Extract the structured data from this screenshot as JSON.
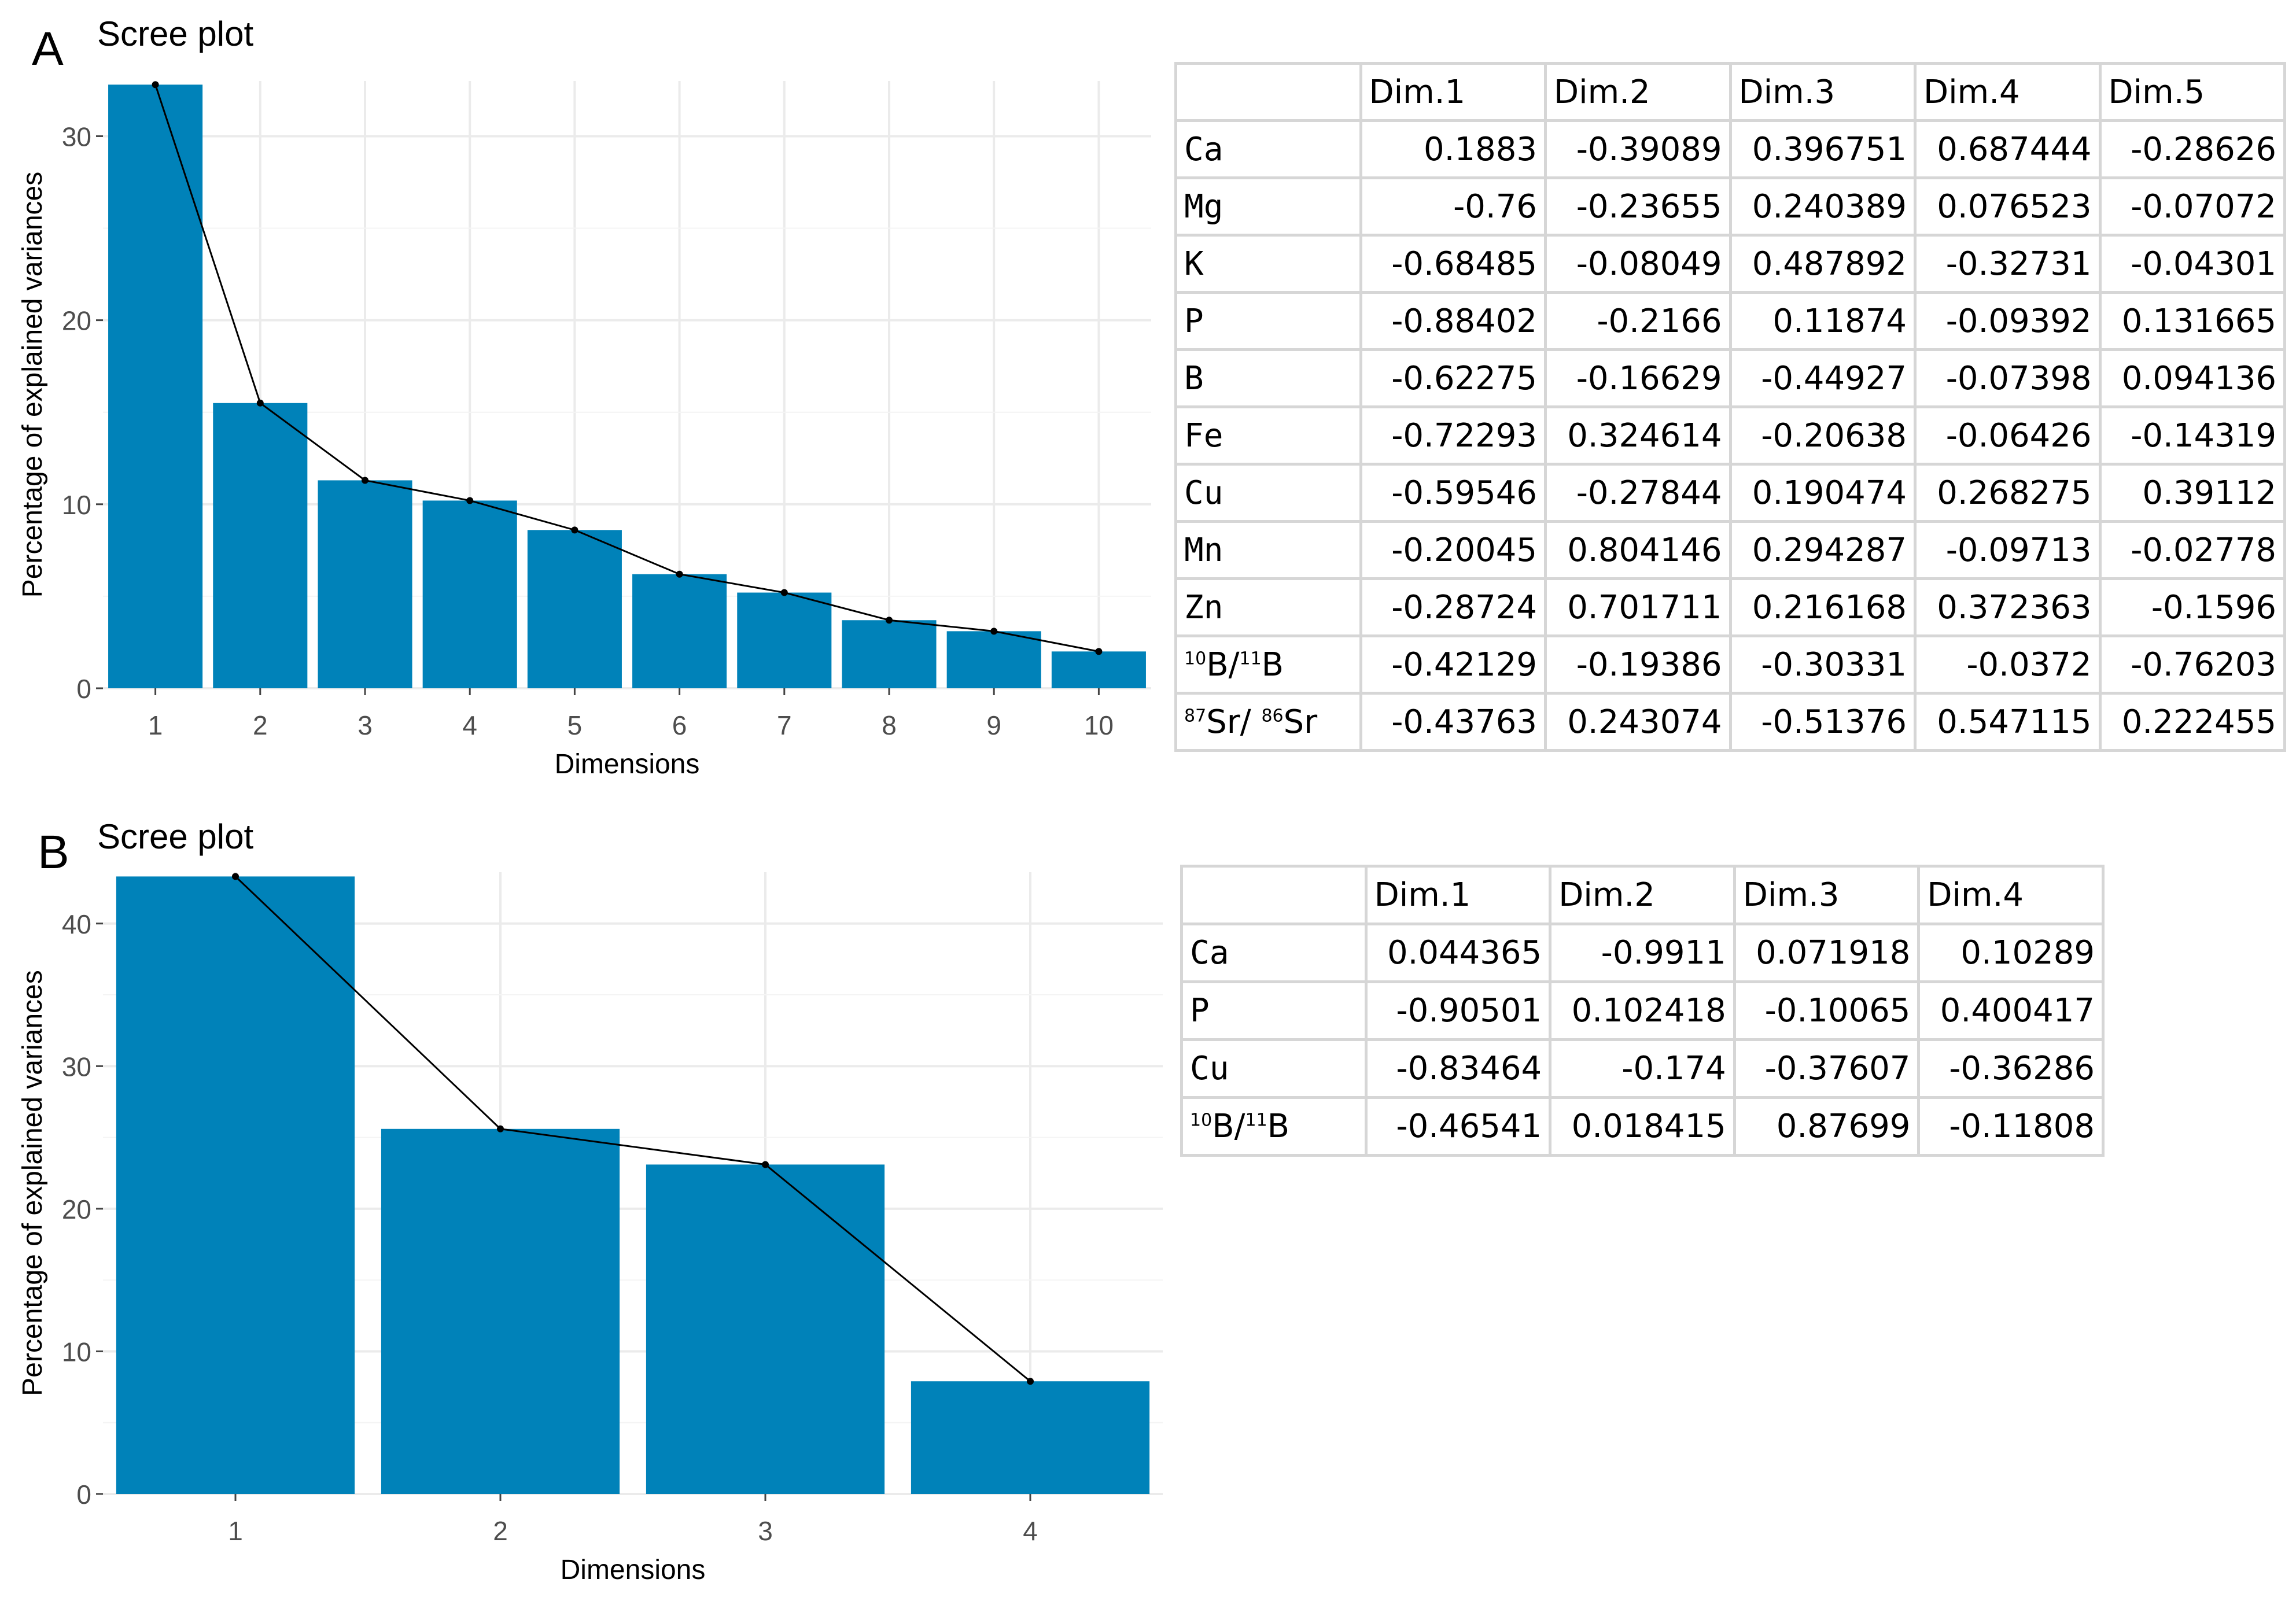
{
  "panel_a": {
    "letter": "A",
    "table": {
      "columns": [
        "Dim.1",
        "Dim.2",
        "Dim.3",
        "Dim.4",
        "Dim.5"
      ],
      "rows": [
        {
          "label": "Ca",
          "values": [
            "0.1883",
            "-0.39089",
            "0.396751",
            "0.687444",
            "-0.28626"
          ]
        },
        {
          "label": "Mg",
          "values": [
            "-0.76",
            "-0.23655",
            "0.240389",
            "0.076523",
            "-0.07072"
          ]
        },
        {
          "label": "K",
          "values": [
            "-0.68485",
            "-0.08049",
            "0.487892",
            "-0.32731",
            "-0.04301"
          ]
        },
        {
          "label": "P",
          "values": [
            "-0.88402",
            "-0.2166",
            "0.11874",
            "-0.09392",
            "0.131665"
          ]
        },
        {
          "label": "B",
          "values": [
            "-0.62275",
            "-0.16629",
            "-0.44927",
            "-0.07398",
            "0.094136"
          ]
        },
        {
          "label": "Fe",
          "values": [
            "-0.72293",
            "0.324614",
            "-0.20638",
            "-0.06426",
            "-0.14319"
          ]
        },
        {
          "label": "Cu",
          "values": [
            "-0.59546",
            "-0.27844",
            "0.190474",
            "0.268275",
            "0.39112"
          ]
        },
        {
          "label": "Mn",
          "values": [
            "-0.20045",
            "0.804146",
            "0.294287",
            "-0.09713",
            "-0.02778"
          ]
        },
        {
          "label": "Zn",
          "values": [
            "-0.28724",
            "0.701711",
            "0.216168",
            "0.372363",
            "-0.1596"
          ]
        },
        {
          "label_parts": {
            "sup1": "10",
            "el1": "B",
            "sep": "/",
            "sup2": "11",
            "el2": "B"
          },
          "values": [
            "-0.42129",
            "-0.19386",
            "-0.30331",
            "-0.0372",
            "-0.76203"
          ]
        },
        {
          "label_parts": {
            "sup1": "87",
            "el1": "Sr",
            "sep": "/ ",
            "sup2": "86",
            "el2": "Sr"
          },
          "values": [
            "-0.43763",
            "0.243074",
            "-0.51376",
            "0.547115",
            "0.222455"
          ]
        }
      ]
    }
  },
  "panel_b": {
    "letter": "B",
    "table": {
      "columns": [
        "Dim.1",
        "Dim.2",
        "Dim.3",
        "Dim.4"
      ],
      "rows": [
        {
          "label": "Ca",
          "values": [
            "0.044365",
            "-0.9911",
            "0.071918",
            "0.10289"
          ]
        },
        {
          "label": "P",
          "values": [
            "-0.90501",
            "0.102418",
            "-0.10065",
            "0.400417"
          ]
        },
        {
          "label": "Cu",
          "values": [
            "-0.83464",
            "-0.174",
            "-0.37607",
            "-0.36286"
          ]
        },
        {
          "label_parts": {
            "sup1": "10",
            "el1": "B",
            "sep": "/",
            "sup2": "11",
            "el2": "B"
          },
          "values": [
            "-0.46541",
            "0.018415",
            "0.87699",
            "-0.11808"
          ]
        }
      ]
    }
  },
  "chart_data": [
    {
      "type": "bar",
      "title": "Scree plot",
      "xlabel": "Dimensions",
      "ylabel": "Percentage of explained variances",
      "categories": [
        "1",
        "2",
        "3",
        "4",
        "5",
        "6",
        "7",
        "8",
        "9",
        "10"
      ],
      "values": [
        32.8,
        15.5,
        11.3,
        10.2,
        8.6,
        6.2,
        5.2,
        3.7,
        3.1,
        2.0
      ],
      "line_overlay": true,
      "ylim": [
        0,
        33
      ],
      "yticks": [
        0,
        10,
        20,
        30
      ],
      "bar_color": "#0082b9",
      "grid": true
    },
    {
      "type": "bar",
      "title": "Scree plot",
      "xlabel": "Dimensions",
      "ylabel": "Percentage of explained variances",
      "categories": [
        "1",
        "2",
        "3",
        "4"
      ],
      "values": [
        43.3,
        25.6,
        23.1,
        7.9
      ],
      "line_overlay": true,
      "ylim": [
        0,
        43.6
      ],
      "yticks": [
        0,
        10,
        20,
        30,
        40
      ],
      "bar_color": "#0082b9",
      "grid": true
    }
  ]
}
